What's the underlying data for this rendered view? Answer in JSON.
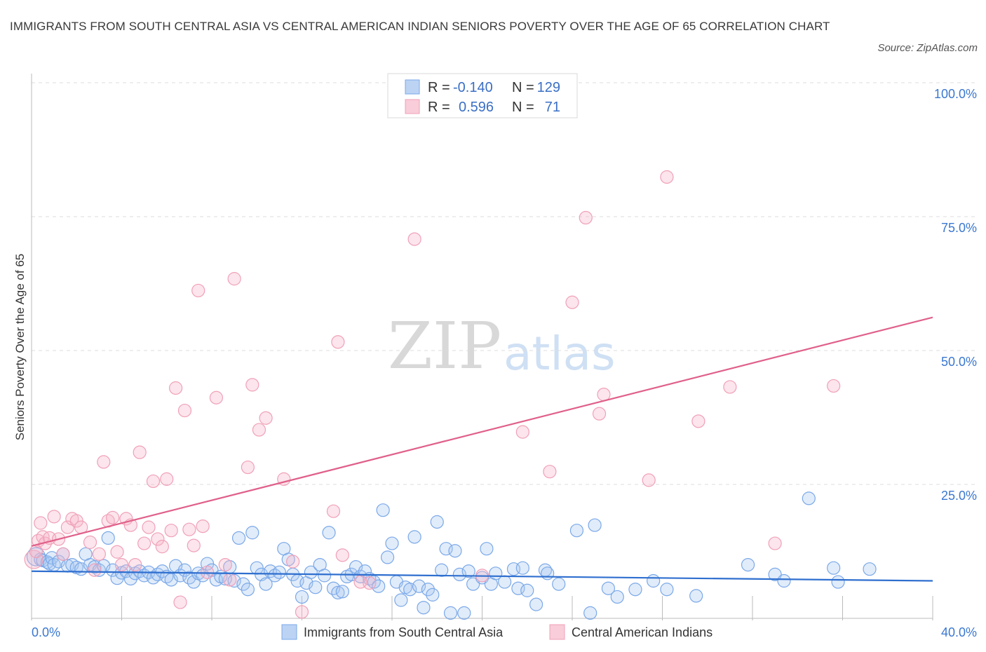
{
  "title": "IMMIGRANTS FROM SOUTH CENTRAL ASIA VS CENTRAL AMERICAN INDIAN SENIORS POVERTY OVER THE AGE OF 65 CORRELATION CHART",
  "source": "Source: ZipAtlas.com",
  "watermark": {
    "zip": "ZIP",
    "atlas": "atlas"
  },
  "legend_box": {
    "r_label": "R =",
    "n_label": "N =",
    "rows": [
      {
        "r": "-0.140",
        "n": "129",
        "color": "#7aa8e8"
      },
      {
        "r": "0.596",
        "n": "71",
        "color": "#f0a0b8"
      }
    ]
  },
  "chart_data": {
    "type": "scatter",
    "title": "IMMIGRANTS FROM SOUTH CENTRAL ASIA VS CENTRAL AMERICAN INDIAN SENIORS POVERTY OVER THE AGE OF 65 CORRELATION CHART",
    "xlabel": "",
    "ylabel": "Seniors Poverty Over the Age of 65",
    "xlim": [
      0,
      40
    ],
    "ylim": [
      0,
      100
    ],
    "x_tick_labels": [
      "0.0%",
      "40.0%"
    ],
    "y_tick_labels": [
      "100.0%",
      "75.0%",
      "50.0%",
      "25.0%"
    ],
    "y_ticks": [
      100,
      75,
      50,
      25
    ],
    "grid": "horizontal dashed",
    "legend_placement": "bottom-center",
    "series": [
      {
        "name": "Immigrants from South Central Asia",
        "color": "#7aa8e8",
        "trend": {
          "x": [
            0,
            40
          ],
          "y": [
            8.8,
            7.0
          ],
          "color": "#2f6fcf"
        },
        "points": [
          [
            0.2,
            11.5
          ],
          [
            0.4,
            11
          ],
          [
            0.5,
            10.8
          ],
          [
            0.7,
            10.5
          ],
          [
            0.8,
            10.2
          ],
          [
            0.9,
            11.3
          ],
          [
            1,
            10
          ],
          [
            1.2,
            10.6
          ],
          [
            1.4,
            12
          ],
          [
            1.6,
            9.8
          ],
          [
            1.8,
            10
          ],
          [
            2,
            9.5
          ],
          [
            2.2,
            9.2
          ],
          [
            2.4,
            12
          ],
          [
            2.6,
            10
          ],
          [
            2.8,
            9.6
          ],
          [
            3,
            9
          ],
          [
            3.2,
            9.8
          ],
          [
            3.4,
            15
          ],
          [
            3.6,
            9
          ],
          [
            3.8,
            7.5
          ],
          [
            4,
            8.5
          ],
          [
            4.2,
            8.8
          ],
          [
            4.4,
            7.4
          ],
          [
            4.6,
            8.4
          ],
          [
            4.8,
            8.8
          ],
          [
            5,
            8
          ],
          [
            5.2,
            8.6
          ],
          [
            5.4,
            7.6
          ],
          [
            5.6,
            8.2
          ],
          [
            5.8,
            8.8
          ],
          [
            6,
            7.8
          ],
          [
            6.2,
            7.2
          ],
          [
            6.4,
            9.8
          ],
          [
            6.6,
            8
          ],
          [
            6.8,
            9
          ],
          [
            7,
            7.6
          ],
          [
            7.2,
            6.8
          ],
          [
            7.4,
            8.4
          ],
          [
            7.6,
            8
          ],
          [
            7.8,
            10.2
          ],
          [
            8,
            9
          ],
          [
            8.2,
            7.2
          ],
          [
            8.4,
            7.8
          ],
          [
            8.6,
            7.4
          ],
          [
            8.8,
            9.6
          ],
          [
            9,
            7
          ],
          [
            9.2,
            15
          ],
          [
            9.4,
            6.4
          ],
          [
            9.6,
            5.4
          ],
          [
            9.8,
            16
          ],
          [
            10,
            9.4
          ],
          [
            10.2,
            8.2
          ],
          [
            10.4,
            6.4
          ],
          [
            10.6,
            8.8
          ],
          [
            10.8,
            8
          ],
          [
            11,
            8.6
          ],
          [
            11.2,
            13
          ],
          [
            11.4,
            11
          ],
          [
            11.6,
            8.2
          ],
          [
            11.8,
            7
          ],
          [
            12,
            4
          ],
          [
            12.2,
            6.6
          ],
          [
            12.4,
            8.6
          ],
          [
            12.6,
            5.8
          ],
          [
            12.8,
            10
          ],
          [
            13,
            8
          ],
          [
            13.2,
            16
          ],
          [
            13.4,
            5.6
          ],
          [
            13.6,
            4.8
          ],
          [
            13.8,
            5
          ],
          [
            14,
            7.8
          ],
          [
            14.2,
            8.2
          ],
          [
            14.4,
            9.6
          ],
          [
            14.6,
            7.8
          ],
          [
            14.8,
            8.8
          ],
          [
            15,
            7.4
          ],
          [
            15.2,
            6.8
          ],
          [
            15.4,
            6
          ],
          [
            15.6,
            20.2
          ],
          [
            15.8,
            11.4
          ],
          [
            16,
            14
          ],
          [
            16.2,
            6.8
          ],
          [
            16.4,
            3.4
          ],
          [
            16.6,
            5.8
          ],
          [
            16.8,
            5.4
          ],
          [
            17,
            15.2
          ],
          [
            17.2,
            6
          ],
          [
            17.4,
            2
          ],
          [
            17.6,
            5.4
          ],
          [
            17.8,
            4.4
          ],
          [
            18,
            18
          ],
          [
            18.2,
            9
          ],
          [
            18.4,
            13
          ],
          [
            18.6,
            1
          ],
          [
            18.8,
            12.6
          ],
          [
            19,
            8.2
          ],
          [
            19.2,
            1
          ],
          [
            19.4,
            8.8
          ],
          [
            19.6,
            6.4
          ],
          [
            20,
            7.6
          ],
          [
            20.2,
            13
          ],
          [
            20.4,
            6.4
          ],
          [
            20.6,
            8.4
          ],
          [
            21,
            6.8
          ],
          [
            21.4,
            9.2
          ],
          [
            21.6,
            5.6
          ],
          [
            21.8,
            9.4
          ],
          [
            22,
            5.2
          ],
          [
            22.4,
            2.6
          ],
          [
            22.8,
            9
          ],
          [
            22.9,
            8.4
          ],
          [
            23.4,
            6.4
          ],
          [
            24.2,
            16.4
          ],
          [
            24.8,
            1
          ],
          [
            25,
            17.4
          ],
          [
            25.6,
            5.6
          ],
          [
            26,
            4
          ],
          [
            26.8,
            5.4
          ],
          [
            27.6,
            7
          ],
          [
            28.2,
            5.4
          ],
          [
            33,
            8.2
          ],
          [
            33.4,
            7
          ],
          [
            34.5,
            22.4
          ],
          [
            35.6,
            9.4
          ],
          [
            35.8,
            6.8
          ],
          [
            37.2,
            9.2
          ],
          [
            31.8,
            10
          ],
          [
            29.5,
            4.2
          ]
        ]
      },
      {
        "name": "Central American Indians",
        "color": "#f0a0b8",
        "trend": {
          "x": [
            0,
            40
          ],
          "y": [
            13.5,
            56.2
          ],
          "color": "#e0608a"
        },
        "points": [
          [
            0.1,
            11
          ],
          [
            0.2,
            12.5
          ],
          [
            0.3,
            14.5
          ],
          [
            0.5,
            15.2
          ],
          [
            0.6,
            14
          ],
          [
            0.8,
            15
          ],
          [
            1,
            19
          ],
          [
            1.2,
            14.8
          ],
          [
            1.4,
            12
          ],
          [
            1.6,
            17
          ],
          [
            1.8,
            18.6
          ],
          [
            2,
            18.2
          ],
          [
            2.2,
            17
          ],
          [
            2.6,
            14.2
          ],
          [
            2.8,
            9
          ],
          [
            3,
            12
          ],
          [
            3.2,
            29.2
          ],
          [
            3.4,
            18.2
          ],
          [
            3.6,
            18.8
          ],
          [
            3.8,
            12.4
          ],
          [
            4,
            10
          ],
          [
            4.2,
            18.6
          ],
          [
            4.4,
            17.4
          ],
          [
            4.6,
            10
          ],
          [
            4.8,
            31
          ],
          [
            5,
            14
          ],
          [
            5.2,
            17
          ],
          [
            5.4,
            25.6
          ],
          [
            5.6,
            14.8
          ],
          [
            5.8,
            13.4
          ],
          [
            6,
            26
          ],
          [
            6.2,
            16.4
          ],
          [
            6.4,
            43
          ],
          [
            6.6,
            3
          ],
          [
            6.8,
            38.8
          ],
          [
            7,
            16.6
          ],
          [
            7.2,
            13.6
          ],
          [
            7.4,
            61.2
          ],
          [
            7.6,
            17.2
          ],
          [
            7.8,
            8.6
          ],
          [
            8.2,
            41.2
          ],
          [
            8.6,
            10
          ],
          [
            8.8,
            7.2
          ],
          [
            9,
            63.4
          ],
          [
            9.6,
            28.2
          ],
          [
            9.8,
            43.6
          ],
          [
            10.1,
            35.2
          ],
          [
            10.4,
            37.4
          ],
          [
            11.2,
            26
          ],
          [
            11.6,
            10.6
          ],
          [
            12,
            1.2
          ],
          [
            13.4,
            20
          ],
          [
            13.6,
            51.6
          ],
          [
            13.8,
            11.8
          ],
          [
            14.6,
            6.8
          ],
          [
            15,
            6.6
          ],
          [
            17,
            70.8
          ],
          [
            20,
            8
          ],
          [
            21.8,
            34.8
          ],
          [
            23,
            27.4
          ],
          [
            24,
            59
          ],
          [
            24.6,
            74.8
          ],
          [
            25.2,
            38.2
          ],
          [
            25.4,
            41.8
          ],
          [
            27.4,
            25.8
          ],
          [
            28.2,
            82.4
          ],
          [
            29.6,
            36.8
          ],
          [
            31,
            43.2
          ],
          [
            33,
            14
          ],
          [
            35.6,
            43.4
          ],
          [
            0.4,
            17.8
          ]
        ]
      }
    ]
  },
  "bottom_legend": [
    {
      "label": "Immigrants from South Central Asia",
      "color": "#7aa8e8"
    },
    {
      "label": "Central American Indians",
      "color": "#f0a0b8"
    }
  ]
}
